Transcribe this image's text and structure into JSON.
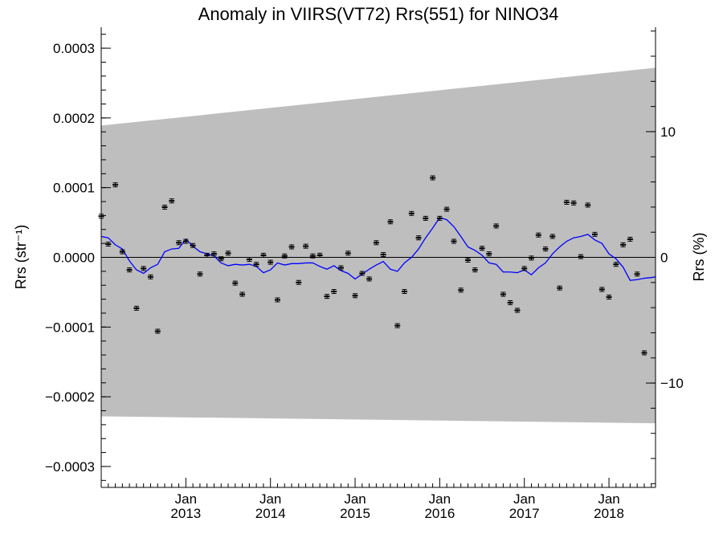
{
  "chart_data": {
    "type": "scatter",
    "title": "Anomaly in VIIRS(VT72) Rrs(551) for NINO34",
    "ylabel_left": "Rrs (str⁻¹)",
    "ylabel_right": "Rrs (%)",
    "xlim": [
      2012.0,
      2018.55
    ],
    "ylim": [
      -0.00033,
      0.00033
    ],
    "ylim_right_percent": [
      -18.3,
      18.3
    ],
    "y_ticks": [
      {
        "value": 0.0003,
        "label": "0.0003"
      },
      {
        "value": 0.0002,
        "label": "0.0002"
      },
      {
        "value": 0.0001,
        "label": "0.0001"
      },
      {
        "value": 0.0,
        "label": "0.0000"
      },
      {
        "value": -0.0001,
        "label": "−0.0001"
      },
      {
        "value": -0.0002,
        "label": "−0.0002"
      },
      {
        "value": -0.0003,
        "label": "−0.0003"
      }
    ],
    "y_ticks_right": [
      {
        "value": 10,
        "label": "10"
      },
      {
        "value": 0,
        "label": "0"
      },
      {
        "value": -10,
        "label": "−10"
      }
    ],
    "x_ticks": [
      {
        "value": 2013.0,
        "month": "Jan",
        "year": "2013"
      },
      {
        "value": 2014.0,
        "month": "Jan",
        "year": "2014"
      },
      {
        "value": 2015.0,
        "month": "Jan",
        "year": "2015"
      },
      {
        "value": 2016.0,
        "month": "Jan",
        "year": "2016"
      },
      {
        "value": 2017.0,
        "month": "Jan",
        "year": "2017"
      },
      {
        "value": 2018.0,
        "month": "Jan",
        "year": "2018"
      }
    ],
    "band": {
      "upper": [
        [
          2012.0,
          0.000189
        ],
        [
          2018.55,
          0.000272
        ]
      ],
      "lower": [
        [
          2012.0,
          -0.000228
        ],
        [
          2018.55,
          -0.000238
        ]
      ],
      "color": "#bebebe"
    },
    "zero_line": true,
    "smoothed_line": {
      "color": "#0000ff",
      "points": [
        [
          2012.0,
          3e-05
        ],
        [
          2012.083,
          2.8e-05
        ],
        [
          2012.167,
          1.8e-05
        ],
        [
          2012.25,
          1.2e-05
        ],
        [
          2012.333,
          -5e-06
        ],
        [
          2012.417,
          -1.8e-05
        ],
        [
          2012.5,
          -2.3e-05
        ],
        [
          2012.583,
          -1.5e-05
        ],
        [
          2012.667,
          -1e-05
        ],
        [
          2012.75,
          8e-06
        ],
        [
          2012.833,
          1.2e-05
        ],
        [
          2012.917,
          1.3e-05
        ],
        [
          2013.0,
          2.6e-05
        ],
        [
          2013.083,
          1.6e-05
        ],
        [
          2013.167,
          8e-06
        ],
        [
          2013.25,
          5e-06
        ],
        [
          2013.333,
          2e-06
        ],
        [
          2013.417,
          -8e-06
        ],
        [
          2013.5,
          -1.2e-05
        ],
        [
          2013.583,
          -1e-05
        ],
        [
          2013.667,
          -1.1e-05
        ],
        [
          2013.75,
          -1e-05
        ],
        [
          2013.833,
          -1.3e-05
        ],
        [
          2013.917,
          -2.2e-05
        ],
        [
          2014.0,
          -1.8e-05
        ],
        [
          2014.083,
          -8e-06
        ],
        [
          2014.167,
          -1.1e-05
        ],
        [
          2014.25,
          -9e-06
        ],
        [
          2014.333,
          -9e-06
        ],
        [
          2014.417,
          -8e-06
        ],
        [
          2014.5,
          -8e-06
        ],
        [
          2014.583,
          -1.3e-05
        ],
        [
          2014.667,
          -1.7e-05
        ],
        [
          2014.75,
          -1.2e-05
        ],
        [
          2014.833,
          -1.9e-05
        ],
        [
          2014.917,
          -2.3e-05
        ],
        [
          2015.0,
          -3.1e-05
        ],
        [
          2015.083,
          -2.4e-05
        ],
        [
          2015.167,
          -1.7e-05
        ],
        [
          2015.25,
          -1.1e-05
        ],
        [
          2015.333,
          -6e-06
        ],
        [
          2015.417,
          -1.7e-05
        ],
        [
          2015.5,
          -2e-05
        ],
        [
          2015.583,
          -8e-06
        ],
        [
          2015.667,
          0.0
        ],
        [
          2015.75,
          1.2e-05
        ],
        [
          2015.833,
          2.8e-05
        ],
        [
          2015.917,
          4.2e-05
        ],
        [
          2016.0,
          5.7e-05
        ],
        [
          2016.083,
          5.4e-05
        ],
        [
          2016.167,
          4.4e-05
        ],
        [
          2016.25,
          3e-05
        ],
        [
          2016.333,
          1.5e-05
        ],
        [
          2016.417,
          1e-05
        ],
        [
          2016.5,
          3e-06
        ],
        [
          2016.583,
          -8e-06
        ],
        [
          2016.667,
          -1e-05
        ],
        [
          2016.75,
          -2.1e-05
        ],
        [
          2016.833,
          -2.1e-05
        ],
        [
          2016.917,
          -2.2e-05
        ],
        [
          2017.0,
          -1.8e-05
        ],
        [
          2017.083,
          -2.5e-05
        ],
        [
          2017.167,
          -1.5e-05
        ],
        [
          2017.25,
          -8e-06
        ],
        [
          2017.333,
          5e-06
        ],
        [
          2017.417,
          1.5e-05
        ],
        [
          2017.5,
          2.3e-05
        ],
        [
          2017.583,
          2.8e-05
        ],
        [
          2017.667,
          3e-05
        ],
        [
          2017.75,
          3.3e-05
        ],
        [
          2017.833,
          2.5e-05
        ],
        [
          2017.917,
          2e-05
        ],
        [
          2018.0,
          5e-06
        ],
        [
          2018.083,
          -2e-06
        ],
        [
          2018.167,
          -1.4e-05
        ],
        [
          2018.25,
          -3.3e-05
        ],
        [
          2018.333,
          -3.2e-05
        ],
        [
          2018.417,
          -3e-05
        ],
        [
          2018.5,
          -2.9e-05
        ],
        [
          2018.55,
          -2.8e-05
        ]
      ]
    },
    "points": [
      [
        2012.0,
        5.9e-05
      ],
      [
        2012.083,
        1.9e-05
      ],
      [
        2012.167,
        0.000104
      ],
      [
        2012.25,
        8e-06
      ],
      [
        2012.333,
        -1.8e-05
      ],
      [
        2012.417,
        -7.3e-05
      ],
      [
        2012.5,
        -1.6e-05
      ],
      [
        2012.583,
        -2.8e-05
      ],
      [
        2012.667,
        -0.000106
      ],
      [
        2012.75,
        7.2e-05
      ],
      [
        2012.833,
        8.1e-05
      ],
      [
        2012.917,
        2.1e-05
      ],
      [
        2013.0,
        2.3e-05
      ],
      [
        2013.083,
        1.7e-05
      ],
      [
        2013.167,
        -2.4e-05
      ],
      [
        2013.25,
        3e-06
      ],
      [
        2013.333,
        5e-06
      ],
      [
        2013.417,
        -2e-06
      ],
      [
        2013.5,
        6e-06
      ],
      [
        2013.583,
        -3.7e-05
      ],
      [
        2013.667,
        -5.3e-05
      ],
      [
        2013.75,
        -3e-06
      ],
      [
        2013.833,
        -1e-05
      ],
      [
        2013.917,
        3e-06
      ],
      [
        2014.0,
        -7e-06
      ],
      [
        2014.083,
        -6.1e-05
      ],
      [
        2014.167,
        2e-06
      ],
      [
        2014.25,
        1.5e-05
      ],
      [
        2014.333,
        -3.6e-05
      ],
      [
        2014.417,
        1.6e-05
      ],
      [
        2014.5,
        2e-06
      ],
      [
        2014.583,
        3e-06
      ],
      [
        2014.667,
        -5.6e-05
      ],
      [
        2014.75,
        -4.9e-05
      ],
      [
        2014.833,
        -1.5e-05
      ],
      [
        2014.917,
        6e-06
      ],
      [
        2015.0,
        -5.5e-05
      ],
      [
        2015.083,
        -2.3e-05
      ],
      [
        2015.167,
        -3.1e-05
      ],
      [
        2015.25,
        2.1e-05
      ],
      [
        2015.333,
        4e-06
      ],
      [
        2015.417,
        5.1e-05
      ],
      [
        2015.5,
        -9.8e-05
      ],
      [
        2015.583,
        -4.9e-05
      ],
      [
        2015.667,
        6.3e-05
      ],
      [
        2015.75,
        2.8e-05
      ],
      [
        2015.833,
        5.6e-05
      ],
      [
        2015.917,
        0.000114
      ],
      [
        2016.0,
        5.6e-05
      ],
      [
        2016.083,
        6.9e-05
      ],
      [
        2016.167,
        2.3e-05
      ],
      [
        2016.25,
        -4.7e-05
      ],
      [
        2016.333,
        -4e-06
      ],
      [
        2016.417,
        -1.8e-05
      ],
      [
        2016.5,
        1.3e-05
      ],
      [
        2016.583,
        5e-06
      ],
      [
        2016.667,
        4.5e-05
      ],
      [
        2016.75,
        -5.3e-05
      ],
      [
        2016.833,
        -6.5e-05
      ],
      [
        2016.917,
        -7.6e-05
      ],
      [
        2017.0,
        -1.6e-05
      ],
      [
        2017.083,
        -1e-06
      ],
      [
        2017.167,
        3.2e-05
      ],
      [
        2017.25,
        1.2e-05
      ],
      [
        2017.333,
        3e-05
      ],
      [
        2017.417,
        -4.4e-05
      ],
      [
        2017.5,
        7.9e-05
      ],
      [
        2017.583,
        7.8e-05
      ],
      [
        2017.667,
        1e-06
      ],
      [
        2017.75,
        7.5e-05
      ],
      [
        2017.833,
        3.3e-05
      ],
      [
        2017.917,
        -4.6e-05
      ],
      [
        2018.0,
        -5.7e-05
      ],
      [
        2018.083,
        -1e-05
      ],
      [
        2018.167,
        1.8e-05
      ],
      [
        2018.25,
        2.6e-05
      ],
      [
        2018.333,
        -2.4e-05
      ],
      [
        2018.417,
        -0.000137
      ]
    ],
    "point_color": "#000000",
    "grid": false,
    "legend": "none"
  }
}
